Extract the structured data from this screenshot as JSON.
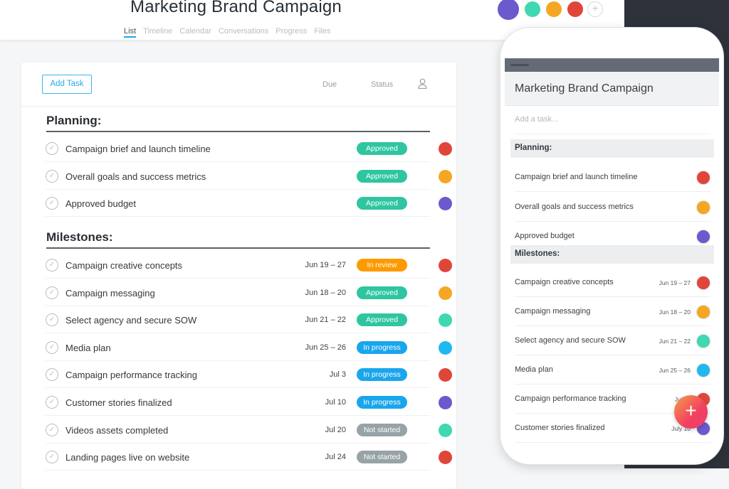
{
  "header": {
    "title": "Marketing Brand Campaign",
    "tabs": [
      "List",
      "Timeline",
      "Calendar",
      "Conversations",
      "Progress",
      "Files"
    ],
    "active_tab": "List",
    "add_member_icon": "plus-circle-icon"
  },
  "colors": {
    "approved": "#2ec5a0",
    "in_review": "#fd9a00",
    "in_progress": "#1aa6ec",
    "not_started": "#97a3a6",
    "accent": "#2aa8e6",
    "fab": "#f2405f"
  },
  "desktop": {
    "add_task_label": "Add Task",
    "col_due": "Due",
    "col_status": "Status",
    "assignee_icon": "person-icon",
    "sections": [
      {
        "title": "Planning:",
        "tasks": [
          {
            "name": "Campaign brief and launch timeline",
            "due": "",
            "status": "Approved",
            "avatar": "#e0453a"
          },
          {
            "name": "Overall goals and success metrics",
            "due": "",
            "status": "Approved",
            "avatar": "#f5a623"
          },
          {
            "name": "Approved budget",
            "due": "",
            "status": "Approved",
            "avatar": "#6a5acd"
          }
        ]
      },
      {
        "title": "Milestones:",
        "tasks": [
          {
            "name": "Campaign creative concepts",
            "due": "Jun 19 – 27",
            "status": "In review",
            "avatar": "#e0453a"
          },
          {
            "name": "Campaign messaging",
            "due": "Jun 18 – 20",
            "status": "Approved",
            "avatar": "#f5a623"
          },
          {
            "name": "Select agency and secure SOW",
            "due": "Jun 21 – 22",
            "status": "Approved",
            "avatar": "#3fd8b0"
          },
          {
            "name": "Media plan",
            "due": "Jun 25 – 26",
            "status": "In progress",
            "avatar": "#1fb9f0"
          },
          {
            "name": "Campaign performance tracking",
            "due": "Jul 3",
            "status": "In progress",
            "avatar": "#e0453a"
          },
          {
            "name": "Customer stories finalized",
            "due": "Jul 10",
            "status": "In progress",
            "avatar": "#6a5acd"
          },
          {
            "name": "Videos assets completed",
            "due": "Jul 20",
            "status": "Not started",
            "avatar": "#3fd8b0"
          },
          {
            "name": "Landing pages live on website",
            "due": "Jul 24",
            "status": "Not started",
            "avatar": "#e0453a"
          }
        ]
      }
    ]
  },
  "mobile": {
    "title": "Marketing Brand Campaign",
    "add_placeholder": "Add a task...",
    "sections": [
      {
        "title": "Planning:",
        "tasks": [
          {
            "name": "Campaign brief and launch timeline",
            "due": "",
            "avatar": "#e0453a"
          },
          {
            "name": "Overall goals and success metrics",
            "due": "",
            "avatar": "#f5a623"
          },
          {
            "name": "Approved budget",
            "due": "",
            "avatar": "#6a5acd"
          }
        ]
      },
      {
        "title": "Milestones:",
        "tasks": [
          {
            "name": "Campaign creative concepts",
            "due": "Jun 19 – 27",
            "avatar": "#e0453a"
          },
          {
            "name": "Campaign messaging",
            "due": "Jun 18 – 20",
            "avatar": "#f5a623"
          },
          {
            "name": "Select agency and secure SOW",
            "due": "Jun 21 – 22",
            "avatar": "#3fd8b0"
          },
          {
            "name": "Media plan",
            "due": "Jun 25 – 26",
            "avatar": "#1fb9f0"
          },
          {
            "name": "Campaign performance tracking",
            "due": "July 3",
            "avatar": "#e0453a"
          },
          {
            "name": "Customer stories finalized",
            "due": "July 10",
            "avatar": "#6a5acd"
          }
        ]
      }
    ],
    "fab_icon": "plus-icon"
  },
  "members": [
    "#6a5acd",
    "#3fd8b0",
    "#f5a623",
    "#e0453a"
  ]
}
